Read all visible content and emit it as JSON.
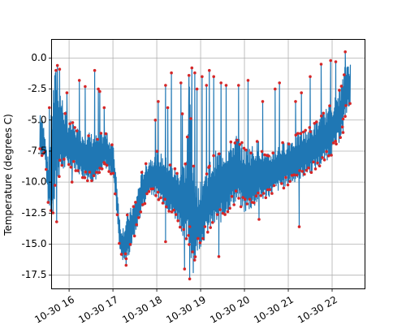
{
  "chart_data": {
    "type": "line",
    "title": "",
    "xlabel": "",
    "ylabel": "Temperature (degrees C)",
    "grid": true,
    "x_ticks": [
      "10-30 16",
      "10-30 17",
      "10-30 18",
      "10-30 19",
      "10-30 20",
      "10-30 21",
      "10-30 22"
    ],
    "y_ticks": [
      "0.0",
      "-2.5",
      "-5.0",
      "-7.5",
      "-10.0",
      "-12.5",
      "-15.0",
      "-17.5"
    ],
    "xlim": [
      "10-30 15:36",
      "10-30 22:45"
    ],
    "ylim": [
      -18.6,
      1.5
    ],
    "series": [
      {
        "line_color": "#1f77b4",
        "marker_color": "#d62728",
        "x": [
          "10-30 15:20",
          "10-30 15:27",
          "10-30 15:32",
          "10-30 15:38",
          "10-30 15:42",
          "10-30 15:47",
          "10-30 15:53",
          "10-30 15:58",
          "10-30 16:05",
          "10-30 16:12",
          "10-30 16:20",
          "10-30 16:30",
          "10-30 16:40",
          "10-30 16:50",
          "10-30 16:55",
          "10-30 17:00",
          "10-30 17:05",
          "10-30 17:10",
          "10-30 17:15",
          "10-30 17:20",
          "10-30 17:30",
          "10-30 17:40",
          "10-30 17:50",
          "10-30 18:00",
          "10-30 18:10",
          "10-30 18:20",
          "10-30 18:30",
          "10-30 18:40",
          "10-30 18:45",
          "10-30 18:50",
          "10-30 18:55",
          "10-30 19:00",
          "10-30 19:10",
          "10-30 19:20",
          "10-30 19:30",
          "10-30 19:40",
          "10-30 19:50",
          "10-30 20:00",
          "10-30 20:10",
          "10-30 20:20",
          "10-30 20:30",
          "10-30 20:45",
          "10-30 21:00",
          "10-30 21:15",
          "10-30 21:30",
          "10-30 21:45",
          "10-30 22:00",
          "10-30 22:10",
          "10-30 22:15",
          "10-30 22:18",
          "10-30 22:22",
          "10-30 22:25"
        ],
        "high": [
          -4.0,
          -6.0,
          -8.5,
          -2.0,
          -0.6,
          -2.0,
          -3.8,
          -4.8,
          -5.2,
          -5.6,
          -5.8,
          -6.0,
          -6.2,
          -5.8,
          -6.4,
          -6.8,
          -9.5,
          -13.5,
          -13.5,
          -12.5,
          -11.5,
          -9.0,
          -8.0,
          -7.5,
          -7.8,
          -8.5,
          -9.0,
          -8.0,
          -1.0,
          -8.5,
          -10.5,
          -10.0,
          -8.5,
          -7.5,
          -7.0,
          -6.8,
          -6.0,
          -7.2,
          -7.0,
          -6.5,
          -7.8,
          -7.0,
          -6.5,
          -6.0,
          -5.5,
          -4.5,
          -3.5,
          -2.5,
          -1.5,
          -0.5,
          0.0,
          -0.3
        ],
        "low": [
          -8.0,
          -8.2,
          -12.5,
          -13.5,
          -10.5,
          -10.0,
          -9.5,
          -9.0,
          -9.0,
          -9.5,
          -10.0,
          -10.2,
          -10.0,
          -9.0,
          -9.5,
          -9.5,
          -12.5,
          -16.0,
          -16.7,
          -16.5,
          -14.5,
          -12.5,
          -11.0,
          -11.5,
          -12.0,
          -13.0,
          -13.5,
          -15.5,
          -16.5,
          -17.8,
          -16.0,
          -15.5,
          -14.5,
          -14.0,
          -13.5,
          -12.5,
          -12.0,
          -12.8,
          -12.5,
          -12.0,
          -11.5,
          -11.0,
          -10.5,
          -10.0,
          -9.5,
          -9.0,
          -8.0,
          -7.0,
          -6.0,
          -5.0,
          -4.5,
          -4.5
        ],
        "spikes": [
          {
            "x": "10-30 15:33",
            "y": -4.0
          },
          {
            "x": "10-30 15:42",
            "y": -1.0
          },
          {
            "x": "10-30 15:44",
            "y": -0.6
          },
          {
            "x": "10-30 15:47",
            "y": -0.9
          },
          {
            "x": "10-30 15:57",
            "y": -2.8
          },
          {
            "x": "10-30 16:14",
            "y": -1.8
          },
          {
            "x": "10-30 16:22",
            "y": -2.3
          },
          {
            "x": "10-30 16:35",
            "y": -1.0
          },
          {
            "x": "10-30 16:40",
            "y": -2.5
          },
          {
            "x": "10-30 16:42",
            "y": -2.7
          },
          {
            "x": "10-30 16:48",
            "y": -4.0
          },
          {
            "x": "10-30 17:58",
            "y": -5.0
          },
          {
            "x": "10-30 18:02",
            "y": -3.5
          },
          {
            "x": "10-30 18:12",
            "y": -2.2
          },
          {
            "x": "10-30 18:15",
            "y": -4.0
          },
          {
            "x": "10-30 18:20",
            "y": -1.2
          },
          {
            "x": "10-30 18:33",
            "y": -2.0
          },
          {
            "x": "10-30 18:35",
            "y": -4.5
          },
          {
            "x": "10-30 18:44",
            "y": -1.4
          },
          {
            "x": "10-30 18:48",
            "y": -0.8
          },
          {
            "x": "10-30 18:52",
            "y": -1.2
          },
          {
            "x": "10-30 18:55",
            "y": -2.5
          },
          {
            "x": "10-30 19:02",
            "y": -1.5
          },
          {
            "x": "10-30 19:08",
            "y": -2.2
          },
          {
            "x": "10-30 19:12",
            "y": -1.0
          },
          {
            "x": "10-30 19:18",
            "y": -1.5
          },
          {
            "x": "10-30 19:28",
            "y": -2.0
          },
          {
            "x": "10-30 19:35",
            "y": -2.2
          },
          {
            "x": "10-30 19:52",
            "y": -2.2
          },
          {
            "x": "10-30 20:05",
            "y": -1.8
          },
          {
            "x": "10-30 20:25",
            "y": -3.5
          },
          {
            "x": "10-30 20:42",
            "y": -2.5
          },
          {
            "x": "10-30 20:48",
            "y": -2.0
          },
          {
            "x": "10-30 21:10",
            "y": -3.5
          },
          {
            "x": "10-30 21:18",
            "y": -2.8
          },
          {
            "x": "10-30 21:30",
            "y": -1.5
          },
          {
            "x": "10-30 21:45",
            "y": -0.5
          },
          {
            "x": "10-30 21:58",
            "y": -0.2
          },
          {
            "x": "10-30 22:05",
            "y": -0.3
          },
          {
            "x": "10-30 22:18",
            "y": 0.5
          }
        ],
        "dips": [
          {
            "x": "10-30 15:43",
            "y": -13.2
          },
          {
            "x": "10-30 16:04",
            "y": -10.0
          },
          {
            "x": "10-30 17:18",
            "y": -16.7
          },
          {
            "x": "10-30 18:12",
            "y": -14.8
          },
          {
            "x": "10-30 18:38",
            "y": -17.0
          },
          {
            "x": "10-30 18:45",
            "y": -17.8
          },
          {
            "x": "10-30 19:25",
            "y": -16.0
          },
          {
            "x": "10-30 20:20",
            "y": -13.0
          },
          {
            "x": "10-30 21:15",
            "y": -13.6
          },
          {
            "x": "10-30 22:15",
            "y": -6.0
          }
        ]
      }
    ]
  }
}
